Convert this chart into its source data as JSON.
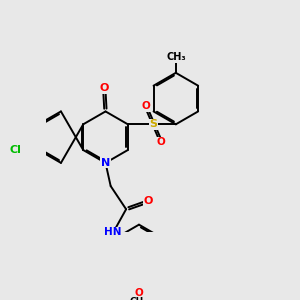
{
  "background_color": "#e8e8e8",
  "bond_color": "#000000",
  "figsize": [
    3.0,
    3.0
  ],
  "dpi": 100,
  "atom_colors": {
    "N": "#0000ff",
    "O": "#ff0000",
    "Cl": "#00bb00",
    "S": "#ccaa00",
    "C": "#000000",
    "H": "#888888"
  },
  "bond_lw": 1.4
}
